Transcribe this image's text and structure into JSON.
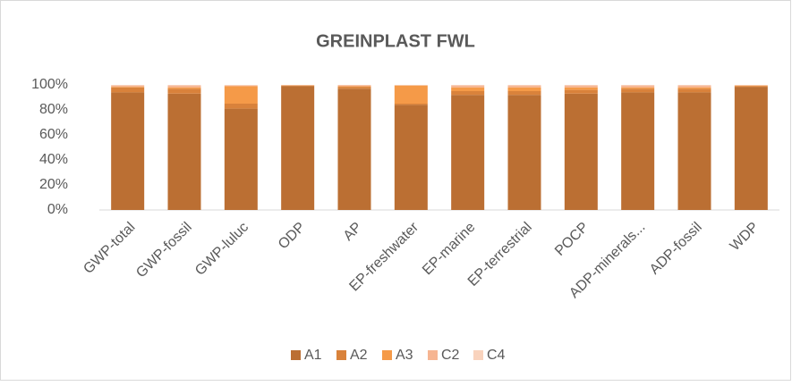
{
  "chart_data": {
    "type": "stacked_bar",
    "title": "GREINPLAST FWL",
    "categories": [
      "GWP-total",
      "GWP-fossil",
      "GWP-luluc",
      "ODP",
      "AP",
      "EP-freshwater",
      "EP-marine",
      "EP-terrestrial",
      "POCP",
      "ADP-minerals...",
      "ADP-fossil",
      "WDP"
    ],
    "series": [
      {
        "name": "A1",
        "color": "#bb6f33",
        "values": [
          94,
          93,
          81,
          99,
          97,
          84,
          92,
          92,
          93,
          94,
          94,
          98.5
        ]
      },
      {
        "name": "A2",
        "color": "#d9823b",
        "values": [
          4,
          4,
          4,
          0.5,
          1.5,
          1,
          3,
          3,
          3,
          3,
          3,
          0.5
        ]
      },
      {
        "name": "A3",
        "color": "#f59a48",
        "values": [
          0.5,
          1,
          14,
          0.2,
          0.5,
          14.5,
          3,
          3,
          2,
          1,
          1,
          0.5
        ]
      },
      {
        "name": "C2",
        "color": "#f6b592",
        "values": [
          1,
          1.5,
          0.5,
          0.2,
          0.8,
          0.3,
          1.5,
          1.5,
          1.5,
          1.5,
          1.5,
          0.3
        ]
      },
      {
        "name": "C4",
        "color": "#f9d3bd",
        "values": [
          0.5,
          0.5,
          0.5,
          0.1,
          0.2,
          0.2,
          0.5,
          0.5,
          0.5,
          0.5,
          0.5,
          0.2
        ]
      }
    ],
    "ylim": [
      0,
      100
    ],
    "yticks": [
      {
        "value": 0,
        "label": "0%"
      },
      {
        "value": 20,
        "label": "20%"
      },
      {
        "value": 40,
        "label": "40%"
      },
      {
        "value": 60,
        "label": "60%"
      },
      {
        "value": 80,
        "label": "80%"
      },
      {
        "value": 100,
        "label": "100%"
      }
    ],
    "legend": "bottom"
  }
}
